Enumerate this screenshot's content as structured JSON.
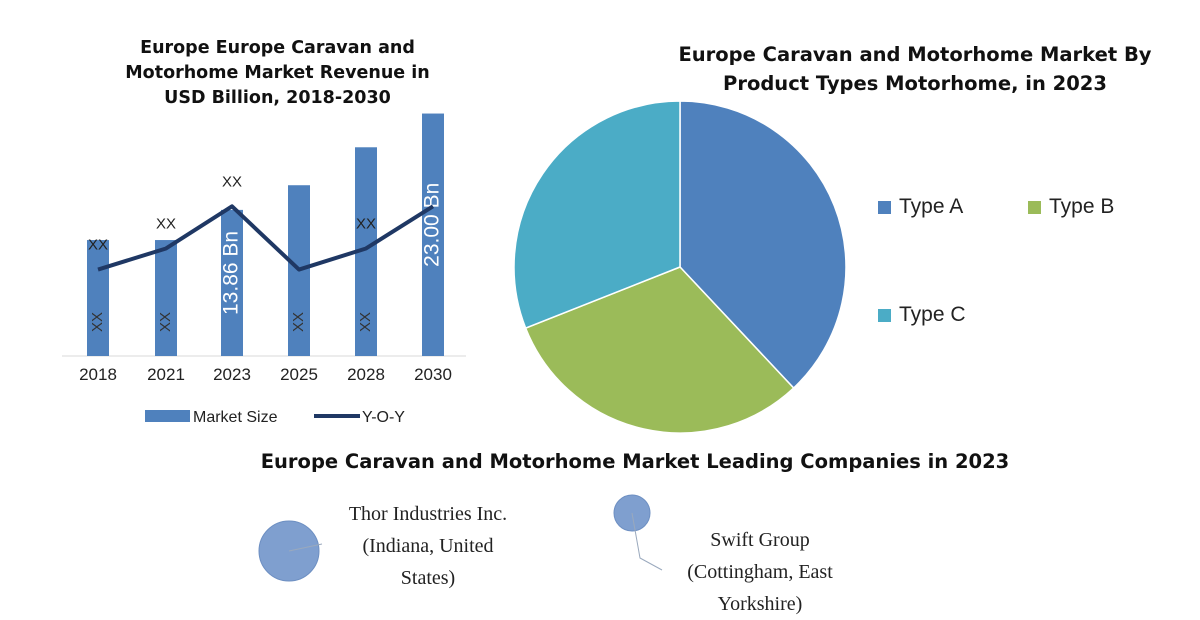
{
  "chart_data": [
    {
      "type": "bar",
      "title": "Europe Europe Caravan and Motorhome Market Revenue in USD Billion, 2018-2030",
      "title_lines": [
        "Europe Europe Caravan and",
        "Motorhome Market Revenue in",
        "USD Billion, 2018-2030"
      ],
      "categories": [
        "2018",
        "2021",
        "2023",
        "2025",
        "2028",
        "2030"
      ],
      "series": [
        {
          "name": "Market Size",
          "kind": "bar",
          "color": "#4f81bd",
          "values": [
            11.0,
            11.0,
            13.86,
            16.2,
            19.8,
            23.0
          ],
          "labels": [
            "XX",
            "XX",
            "13.86 Bn",
            "XX",
            "XX",
            "23.00 Bn"
          ]
        },
        {
          "name": "Y-O-Y",
          "kind": "line",
          "color": "#1f3864",
          "values": [
            8.2,
            10.2,
            14.2,
            8.2,
            10.2,
            14.2
          ],
          "labels": [
            "XX",
            "XX",
            "XX",
            "",
            "XX",
            ""
          ]
        }
      ],
      "ylim": [
        0,
        24
      ],
      "legend": "bottom"
    },
    {
      "type": "pie",
      "title": "Europe Caravan and Motorhome Market By Product Types Motorhome, in 2023",
      "title_lines": [
        "Europe Caravan and Motorhome Market By",
        "Product Types Motorhome, in 2023"
      ],
      "labels": [
        "Type A",
        "Type B",
        "Type C"
      ],
      "values": [
        38,
        31,
        31
      ],
      "colors": [
        "#4f81bd",
        "#9bbb59",
        "#4bacc6"
      ],
      "legend": "right"
    }
  ],
  "companies": {
    "title": "Europe Caravan and Motorhome Market Leading Companies in 2023",
    "items": [
      {
        "lines": [
          "Thor Industries Inc.",
          "(Indiana, United",
          "States)"
        ]
      },
      {
        "lines": [
          "Swift Group",
          "(Cottingham, East",
          "Yorkshire)"
        ]
      }
    ],
    "bubble_color": "#7f9fcf"
  }
}
